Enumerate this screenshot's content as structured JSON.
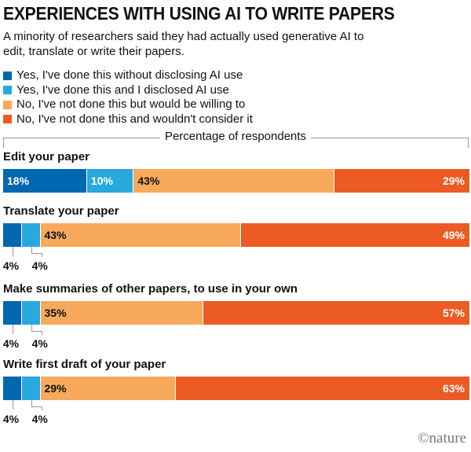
{
  "title": "EXPERIENCES WITH USING AI TO WRITE PAPERS",
  "subtitle": "A minority of researchers said they had actually used generative AI to edit, translate or write their papers.",
  "logo": "©nature",
  "chart_data": {
    "type": "bar",
    "orientation": "horizontal",
    "stacked": true,
    "xlabel": "Percentage of respondents",
    "xlim": [
      0,
      100
    ],
    "legend_position": "top-left",
    "categories": [
      "Edit your paper",
      "Translate your paper",
      "Make summaries of other papers, to use in your own",
      "Write first draft of your paper"
    ],
    "series": [
      {
        "name": "Yes, I've done this without disclosing AI use",
        "color": "#0067b1",
        "values": [
          18,
          4,
          4,
          4
        ],
        "labels": [
          "18%",
          "4%",
          "4%",
          "4%"
        ]
      },
      {
        "name": "Yes, I've done this and I disclosed AI use",
        "color": "#29a8e0",
        "values": [
          10,
          4,
          4,
          4
        ],
        "labels": [
          "10%",
          "4%",
          "4%",
          "4%"
        ]
      },
      {
        "name": "No, I've not done this but would be willing to",
        "color": "#f7aa5b",
        "values": [
          43,
          43,
          35,
          29
        ],
        "labels": [
          "43%",
          "43%",
          "35%",
          "29%"
        ]
      },
      {
        "name": "No, I've not done this and wouldn't consider it",
        "color": "#ec5b24",
        "values": [
          29,
          49,
          57,
          63
        ],
        "labels": [
          "29%",
          "49%",
          "57%",
          "63%"
        ]
      }
    ]
  }
}
